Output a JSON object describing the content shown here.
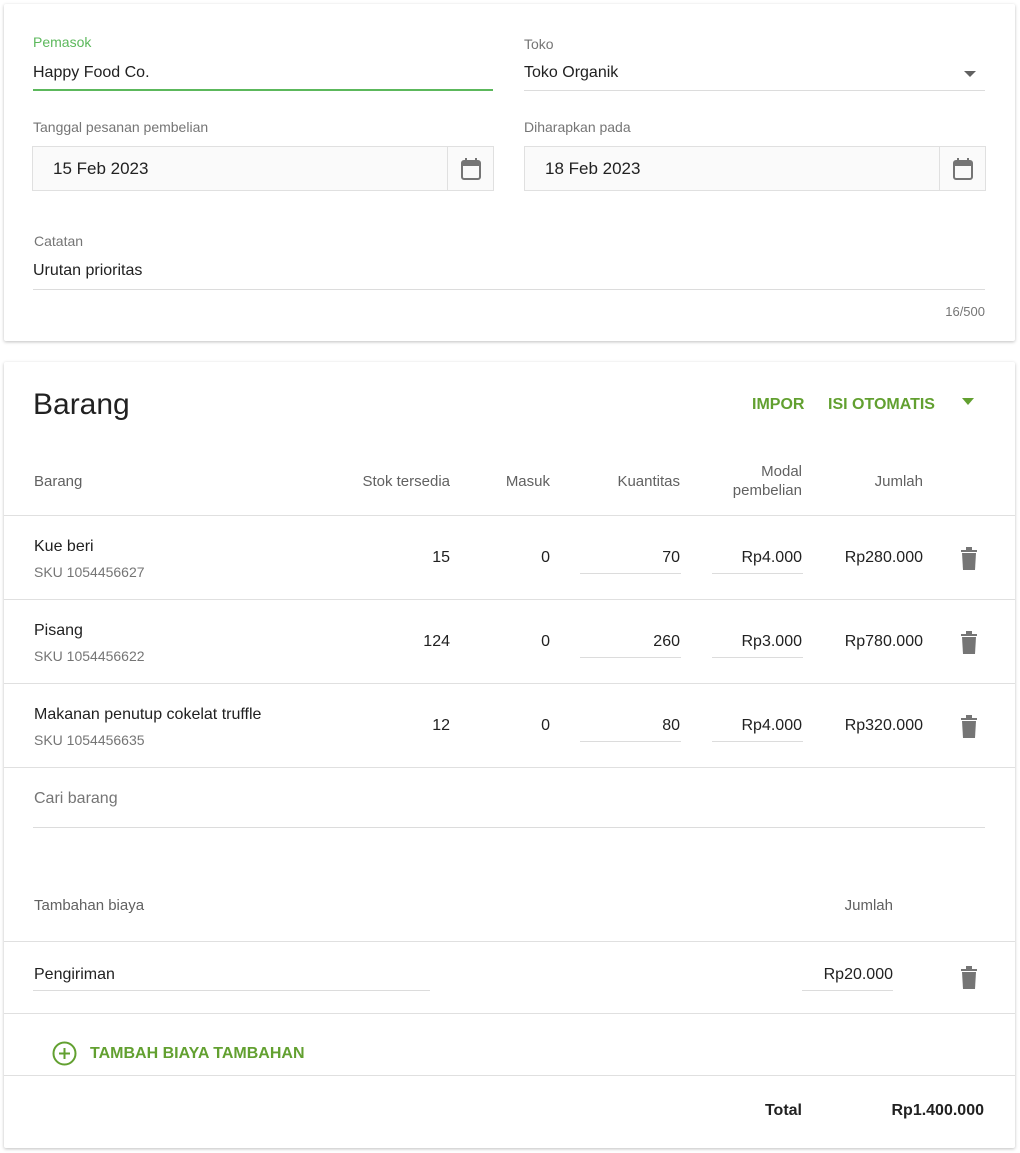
{
  "form": {
    "supplier": {
      "label": "Pemasok",
      "value": "Happy Food Co."
    },
    "store": {
      "label": "Toko",
      "value": "Toko Organik"
    },
    "order_date": {
      "label": "Tanggal pesanan pembelian",
      "value": "15 Feb 2023"
    },
    "expected_date": {
      "label": "Diharapkan pada",
      "value": "18 Feb 2023"
    },
    "notes": {
      "label": "Catatan",
      "value": "Urutan prioritas",
      "counter": "16/500"
    }
  },
  "items": {
    "title": "Barang",
    "import_label": "IMPOR",
    "autofill_label": "ISI OTOMATIS",
    "columns": {
      "item": "Barang",
      "stock": "Stok tersedia",
      "incoming": "Masuk",
      "quantity": "Kuantitas",
      "cost_1": "Modal",
      "cost_2": "pembelian",
      "amount": "Jumlah"
    },
    "rows": [
      {
        "name": "Kue beri",
        "sku": "SKU 1054456627",
        "stock": "15",
        "incoming": "0",
        "quantity": "70",
        "cost": "Rp4.000",
        "amount": "Rp280.000"
      },
      {
        "name": "Pisang",
        "sku": "SKU 1054456622",
        "stock": "124",
        "incoming": "0",
        "quantity": "260",
        "cost": "Rp3.000",
        "amount": "Rp780.000"
      },
      {
        "name": "Makanan penutup cokelat truffle",
        "sku": "SKU 1054456635",
        "stock": "12",
        "incoming": "0",
        "quantity": "80",
        "cost": "Rp4.000",
        "amount": "Rp320.000"
      }
    ],
    "search_placeholder": "Cari barang"
  },
  "costs": {
    "header": "Tambahan biaya",
    "amount_header": "Jumlah",
    "rows": [
      {
        "name": "Pengiriman",
        "amount": "Rp20.000"
      }
    ],
    "add_label": "TAMBAH BIAYA TAMBAHAN"
  },
  "total": {
    "label": "Total",
    "value": "Rp1.400.000"
  },
  "colors": {
    "accent": "#62a030",
    "trash": "#757575"
  }
}
